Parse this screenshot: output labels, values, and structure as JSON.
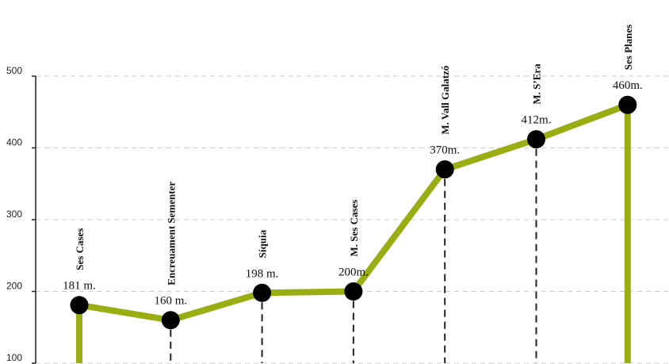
{
  "chart_data": {
    "type": "line",
    "title": "",
    "xlabel": "",
    "ylabel": "",
    "ylim": [
      100,
      500
    ],
    "yticks": [
      "100",
      "200",
      "300",
      "400",
      "500"
    ],
    "grid": true,
    "colors": {
      "line": "#9aae14",
      "marker": "#000000",
      "grid": "#cccccc",
      "drop_line": "#222222"
    },
    "points": [
      {
        "name": "Ses Cases",
        "value": 181,
        "label": "181 m."
      },
      {
        "name": "Encreuament Sementer",
        "value": 160,
        "label": "160 m."
      },
      {
        "name": "Síquia",
        "value": 198,
        "label": "198 m."
      },
      {
        "name": "M. Ses Cases",
        "value": 200,
        "label": "200m."
      },
      {
        "name": "M. Vall Galatzó",
        "value": 370,
        "label": "370m."
      },
      {
        "name": "M. S’Era",
        "value": 412,
        "label": "412m."
      },
      {
        "name": "Ses Planes",
        "value": 460,
        "label": "460m."
      }
    ]
  }
}
